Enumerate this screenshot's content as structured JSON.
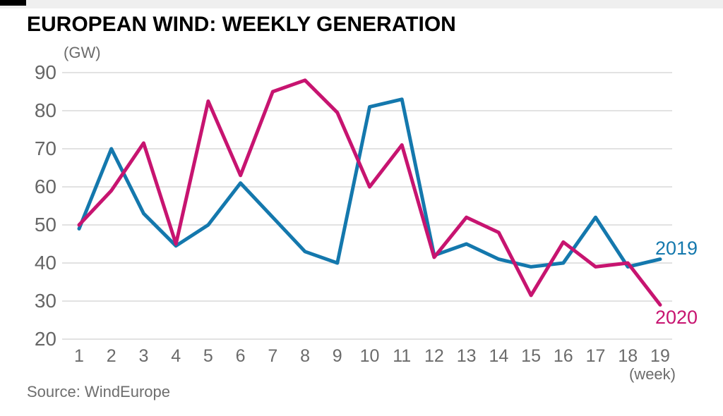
{
  "header": {
    "title": "EUROPEAN WIND: WEEKLY GENERATION"
  },
  "chart_data": {
    "type": "line",
    "title": "EUROPEAN WIND: WEEKLY GENERATION",
    "unit_label": "(GW)",
    "xlabel": "(week)",
    "ylabel": "",
    "x": [
      1,
      2,
      3,
      4,
      5,
      6,
      7,
      8,
      9,
      10,
      11,
      12,
      13,
      14,
      15,
      16,
      17,
      18,
      19
    ],
    "yticks": [
      90,
      80,
      70,
      60,
      50,
      40,
      30,
      20
    ],
    "ylim": [
      20,
      90
    ],
    "grid": "horizontal",
    "legend_position": "line-end-labels",
    "series": [
      {
        "name": "2019",
        "color": "#1478ad",
        "label_dy": -31,
        "values": [
          49,
          70,
          53,
          44.5,
          50,
          61,
          52,
          43,
          40,
          81,
          83,
          42,
          45,
          41,
          39,
          40,
          52,
          39,
          41
        ]
      },
      {
        "name": "2020",
        "color": "#c71470",
        "label_dy": 3,
        "values": [
          50,
          59,
          71.5,
          45,
          82.5,
          63,
          85,
          88,
          79.5,
          60,
          71,
          41.5,
          52,
          48,
          31.5,
          45.5,
          39,
          40,
          29
        ]
      }
    ]
  },
  "footer": {
    "source": "Source: WindEurope"
  },
  "colors": {
    "grid": "#d9d9d9",
    "axis_text": "#6b6b6b",
    "title": "#000000",
    "top_tab": "#000000"
  }
}
